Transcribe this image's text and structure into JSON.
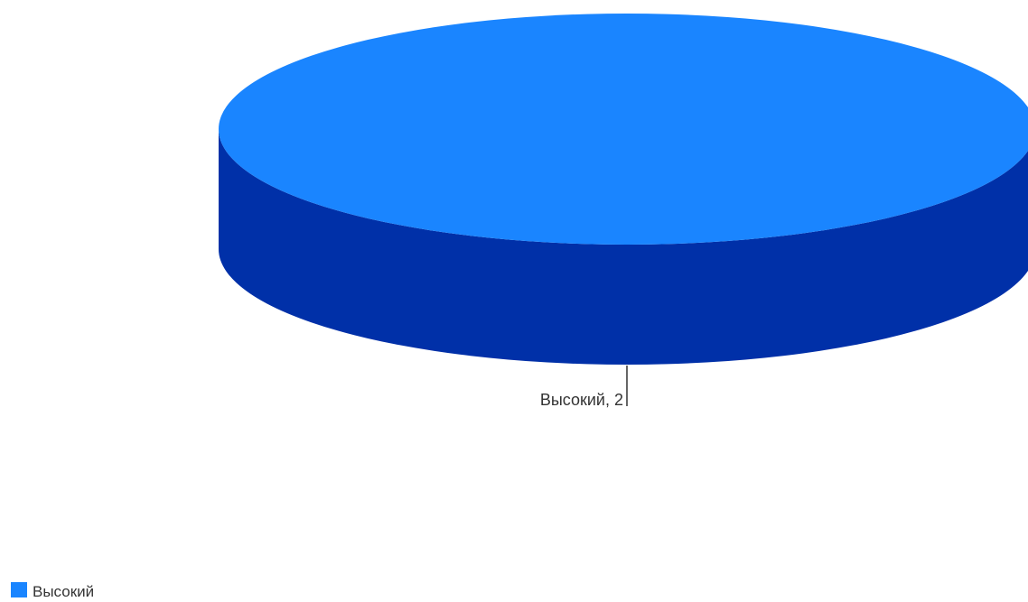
{
  "chart_data": {
    "type": "pie",
    "style": "3d",
    "title": "",
    "categories": [
      "Высокий"
    ],
    "values": [
      2
    ],
    "data_labels": [
      "Высокий, 2"
    ],
    "legend": {
      "position": "bottom-left",
      "entries": [
        "Высокий"
      ]
    },
    "colors": {
      "top": "#1a85ff",
      "side": "#0030a8",
      "label_text": "#333333",
      "leader_line": "#333333"
    }
  }
}
